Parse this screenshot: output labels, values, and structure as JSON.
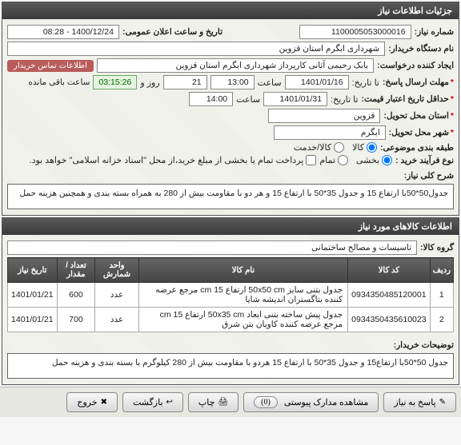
{
  "panel1": {
    "title": "جزئیات اطلاعات نیاز",
    "niaz_number_label": "شماره نیاز:",
    "niaz_number": "1100005053000016",
    "datetime_label": "تاریخ و ساعت اعلان عمومی:",
    "datetime": "1400/12/24 - 08:28",
    "buyer_label": "نام دستگاه خریدار:",
    "buyer": "شهرداری ابگرم استان قزوین",
    "creator_label": "ایجاد کننده درخواست:",
    "creator": "بابک  رحیمی آثانی  کارپرداز شهرداری ابگرم استان قزوین",
    "contact_badge": "اطلاعات تماس خریدار",
    "deadline_label": "مهلت ارسال پاسخ:",
    "deadline_tarikh_lbl": "تا تاریخ:",
    "deadline_date": "1401/01/16",
    "deadline_saat_lbl": "ساعت",
    "deadline_time": "13:00",
    "deadline_rooz_lbl": "روز و",
    "deadline_days": "21",
    "countdown": "03:15:26",
    "remaining": "ساعت باقی مانده",
    "validity_label": "حداقل تاریخ اعتبار قیمت:",
    "validity_date": "1401/01/31",
    "validity_time": "14:00",
    "validity_tarikh_lbl": "تا تاریخ:",
    "validity_saat_lbl": "ساعت",
    "province_label": "استان محل تحویل:",
    "province": "قزوین",
    "city_label": "شهر محل تحویل:",
    "city": "ابگرم",
    "category_label": "طبقه بندی موضوعی:",
    "cat_kala": "کالا",
    "cat_khidmat": "کالا/خدمت",
    "process_label": "نوع فرآیند خرید :",
    "proc_bakhsh": "بخشی",
    "proc_tamam": "تمام",
    "process_note": "پرداخت تمام یا بخشی از مبلغ خرید،از محل \"اسناد خزانه اسلامی\" خواهد بود.",
    "desc_label": "شرح کلی نیاز:",
    "desc": "جدول50*50با ارتفاع 15 و جدول 35*50 با ارتفاع 15 و هر دو با مقاومت بیش از 280 به همراه بسته بندی و همچنین هزینه حمل"
  },
  "panel2": {
    "title": "اطلاعات کالاهای مورد نیاز",
    "group_label": "گروه کالا:",
    "group": "تاسیسات و مصالح ساختمانی",
    "table": {
      "columns": [
        "ردیف",
        "کد کالا",
        "نام کالا",
        "واحد شمارش",
        "تعداد / مقدار",
        "تاریخ نیاز"
      ],
      "rows": [
        [
          "1",
          "0934350485120001",
          "جدول بتنی سایز 50x50 cm ارتفاع 15 cm مرجع عرضه کننده بتاگستران اندیشه شایا",
          "عدد",
          "600",
          "1401/01/21"
        ],
        [
          "2",
          "0934350435610023",
          "جدول پیش ساخته بتنی ابعاد 50x35 cm ارتفاع 15 cm مرجع عرضه کننده کاویان بتن شرق",
          "عدد",
          "700",
          "1401/01/21"
        ]
      ]
    },
    "buyer_notes_label": "توضیحات خریدار:",
    "buyer_notes": "جدول 50*50با ارتفاع15 و جدول 35*50 با ارتفاع 15 هردو با مقاومت بیش از 280 کیلوگرم با بسته بندی و هزینه حمل"
  },
  "buttons": {
    "respond": "پاسخ به نیاز",
    "attachments": "مشاهده مدارک پیوستی",
    "attach_count": "(0)",
    "print": "چاپ",
    "back": "بازگشت",
    "exit": "خروج"
  }
}
